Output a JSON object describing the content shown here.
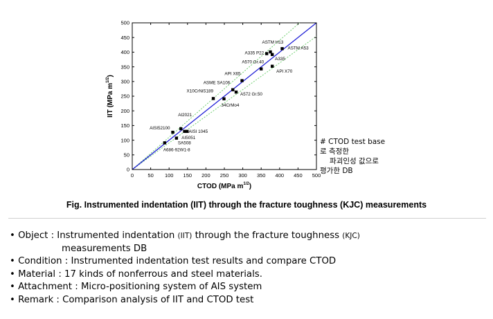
{
  "chart_data": {
    "type": "scatter",
    "xlabel": "CTOD (MPa m",
    "xlabel_sup": "1/2",
    "xlabel_end": ")",
    "ylabel": "IIT (MPa m",
    "ylabel_sup": "1/2",
    "ylabel_end": ")",
    "xlim": [
      0,
      500
    ],
    "ylim": [
      0,
      500
    ],
    "x_ticks": [
      0,
      50,
      100,
      150,
      200,
      250,
      300,
      350,
      400,
      450,
      500
    ],
    "y_ticks": [
      0,
      50,
      100,
      150,
      200,
      250,
      300,
      350,
      400,
      450,
      500
    ],
    "grid": false,
    "reference_line": {
      "from": [
        0,
        0
      ],
      "to": [
        500,
        500
      ],
      "color": "#1f1fd6"
    },
    "bound_lines": {
      "color": "#6fcf6f",
      "upper": {
        "from": [
          0,
          0
        ],
        "to": [
          454,
          500
        ]
      },
      "lower": {
        "from": [
          0,
          0
        ],
        "to": [
          500,
          454
        ]
      }
    },
    "marker_color": "#000000",
    "points": [
      {
        "label": "A686-92W1-8",
        "x": 88,
        "y": 91
      },
      {
        "label": "SA508",
        "x": 120,
        "y": 107
      },
      {
        "label": "AISI52100",
        "x": 110,
        "y": 127
      },
      {
        "label": "AI2021",
        "x": 132,
        "y": 139
      },
      {
        "label": "AISI 1045",
        "x": 142,
        "y": 130
      },
      {
        "label": "AI5051",
        "x": 149,
        "y": 130
      },
      {
        "label": "X10CrNiS189",
        "x": 220,
        "y": 242
      },
      {
        "label": "34CrMo4",
        "x": 249,
        "y": 241
      },
      {
        "label": "ASME SA106",
        "x": 273,
        "y": 272
      },
      {
        "label": "A572 Gr.50",
        "x": 282,
        "y": 264
      },
      {
        "label": "API X65",
        "x": 298,
        "y": 303
      },
      {
        "label": "A570 Gr.40",
        "x": 350,
        "y": 343
      },
      {
        "label": "API X70",
        "x": 380,
        "y": 352
      },
      {
        "label": "A335 P22",
        "x": 365,
        "y": 395
      },
      {
        "label": "ASTM H13",
        "x": 375,
        "y": 401
      },
      {
        "label": "A335",
        "x": 380,
        "y": 392
      },
      {
        "label": "ASTM A53",
        "x": 407,
        "y": 412
      }
    ]
  },
  "caption": "Fig. Instrumented indentation (IIT) through the fracture toughness (KJC) measurements",
  "note": {
    "line1": "# CTOD test base",
    "line2": "로 측정한",
    "line3": "파괴인성 값으로",
    "line4": "평가한 DB"
  },
  "bullets": {
    "object_a": "• Object : Instrumented indentation ",
    "object_b": "(IIT)",
    "object_c": " through the fracture toughness ",
    "object_d": "(KJC)",
    "object_cont": "measurements DB",
    "condition": "• Condition : Instrumented indentation test results and compare CTOD",
    "material": "• Material : 17 kinds of nonferrous and steel materials.",
    "attachment": "• Attachment : Micro-positioning system of AIS system",
    "remark": "• Remark : Comparison analysis of IIT and CTOD test"
  }
}
